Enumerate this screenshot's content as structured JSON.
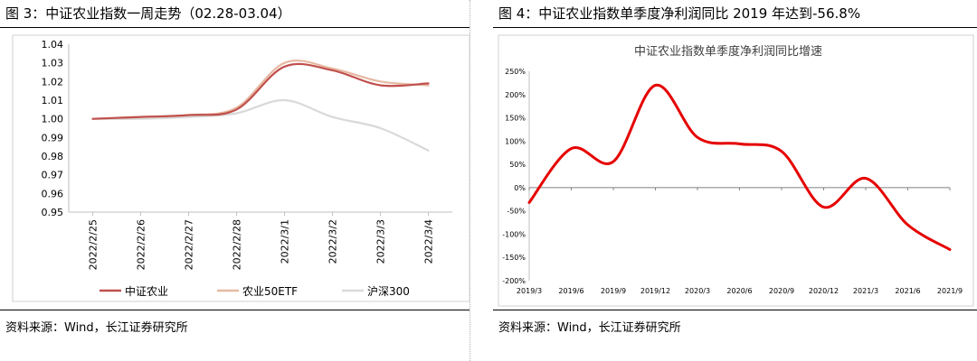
{
  "figures": {
    "left": {
      "title": "图 3：中证农业指数一周走势（02.28-03.04）",
      "source": "资料来源：Wind，长江证券研究所"
    },
    "right": {
      "title": "图 4：中证农业指数单季度净利润同比 2019 年达到-56.8%",
      "source": "资料来源：Wind，长江证券研究所"
    }
  },
  "chart_data": [
    {
      "type": "line",
      "title": "",
      "xlabel": "",
      "ylabel": "",
      "categories": [
        "2022/2/25",
        "2022/2/26",
        "2022/2/27",
        "2022/2/28",
        "2022/3/1",
        "2022/3/2",
        "2022/3/3",
        "2022/3/4"
      ],
      "y_ticks": [
        "0.95",
        "0.96",
        "0.97",
        "0.98",
        "0.99",
        "1.00",
        "1.01",
        "1.02",
        "1.03",
        "1.04"
      ],
      "ylim": [
        0.95,
        1.04
      ],
      "grid": false,
      "legend": "bottom",
      "series": [
        {
          "name": "中证农业",
          "color": "#C0504D",
          "values": [
            1.0,
            1.001,
            1.002,
            1.005,
            1.028,
            1.026,
            1.018,
            1.019
          ]
        },
        {
          "name": "农业50ETF",
          "color": "#E6B9A2",
          "values": [
            1.0,
            1.001,
            1.002,
            1.006,
            1.03,
            1.027,
            1.02,
            1.018
          ]
        },
        {
          "name": "沪深300",
          "color": "#D9D9D9",
          "values": [
            1.0,
            1.0,
            1.001,
            1.003,
            1.01,
            1.001,
            0.995,
            0.983
          ]
        }
      ]
    },
    {
      "type": "line",
      "title": "中证农业指数单季度净利润同比增速",
      "xlabel": "",
      "ylabel": "",
      "categories": [
        "2019/3",
        "2019/6",
        "2019/9",
        "2019/12",
        "2020/3",
        "2020/6",
        "2020/9",
        "2020/12",
        "2021/3",
        "2021/6",
        "2021/9"
      ],
      "y_ticks": [
        "-200%",
        "-150%",
        "-100%",
        "-50%",
        "0%",
        "50%",
        "100%",
        "150%",
        "200%",
        "250%"
      ],
      "ylim": [
        -200,
        250
      ],
      "grid": false,
      "legend": "none",
      "series": [
        {
          "color": "#E60000",
          "values": [
            -32,
            84,
            56,
            220,
            108,
            94,
            78,
            -42,
            20,
            -80,
            -133
          ]
        }
      ]
    }
  ]
}
